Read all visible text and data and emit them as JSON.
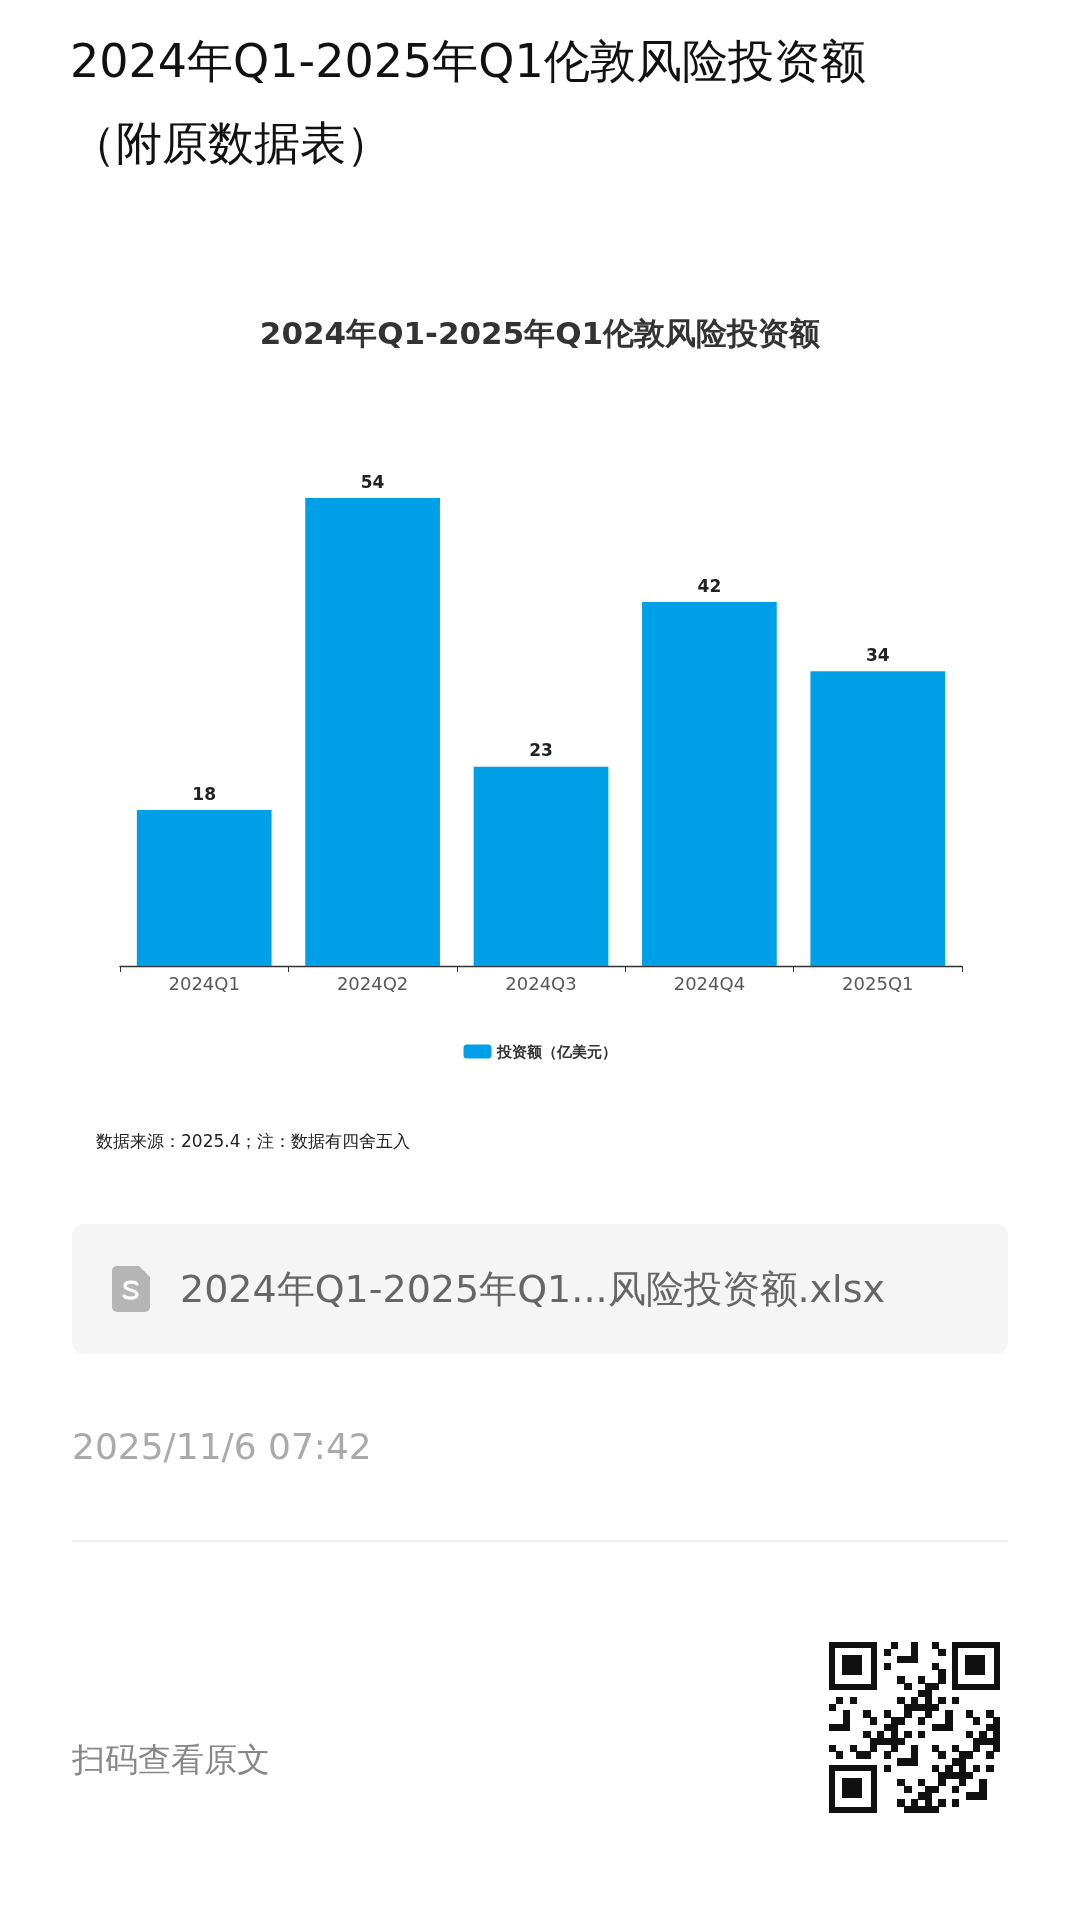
{
  "chart_data": {
    "type": "bar",
    "title": "2024年Q1-2025年Q1伦敦风险投资额（附原数据表）",
    "subtitle": "2024年Q1-2025年Q1伦敦风险投资额",
    "categories": [
      "2024Q1",
      "2024Q2",
      "2024Q3",
      "2024Q4",
      "2025Q1"
    ],
    "series": [
      {
        "name": "投资额（亿美元）",
        "color": "#00a0e8",
        "values": [
          18,
          54,
          23,
          42,
          34
        ]
      }
    ],
    "data_labels": true,
    "legend": "bottom",
    "annotations": [
      "数据来源：2025.4；注：数据有四舍五入",
      "2024年Q1-2025年Q1...风险投资额.xlsx",
      "2025/11/6 07:42",
      "扫码查看原文"
    ]
  }
}
